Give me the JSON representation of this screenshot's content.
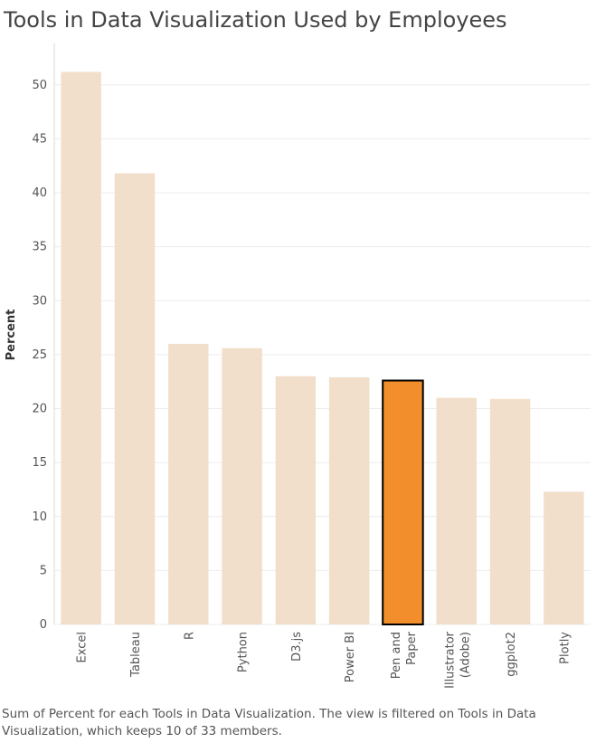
{
  "chart_data": {
    "type": "bar",
    "title": "Tools in Data Visualization Used by Employees",
    "ylabel": "Percent",
    "xlabel": "",
    "categories": [
      "Excel",
      "Tableau",
      "R",
      "Python",
      "D3.js",
      "Power BI",
      "Pen and Paper",
      "Illustrator (Adobe)",
      "ggplot2",
      "Plotly"
    ],
    "category_label_lines": [
      [
        "Excel"
      ],
      [
        "Tableau"
      ],
      [
        "R"
      ],
      [
        "Python"
      ],
      [
        "D3.js"
      ],
      [
        "Power BI"
      ],
      [
        "Pen and",
        "Paper"
      ],
      [
        "Illustrator",
        "(Adobe)"
      ],
      [
        "ggplot2"
      ],
      [
        "Plotly"
      ]
    ],
    "values": [
      51.2,
      41.8,
      26.0,
      25.6,
      23.0,
      22.9,
      22.6,
      21.0,
      20.9,
      12.3
    ],
    "highlighted_index": 6,
    "ylim": [
      0,
      53
    ],
    "yticks": [
      0,
      5,
      10,
      15,
      20,
      25,
      30,
      35,
      40,
      45,
      50
    ],
    "grid": true,
    "colors": {
      "bar": "#f2dfcb",
      "bar_highlight": "#f28e2b",
      "highlight_outline": "#000000",
      "grid": "#ececec",
      "axis": "#d9d9d9"
    }
  },
  "caption": "Sum of Percent for each Tools in Data Visualization. The view is filtered on Tools in Data Visualization, which keeps 10 of 33 members."
}
